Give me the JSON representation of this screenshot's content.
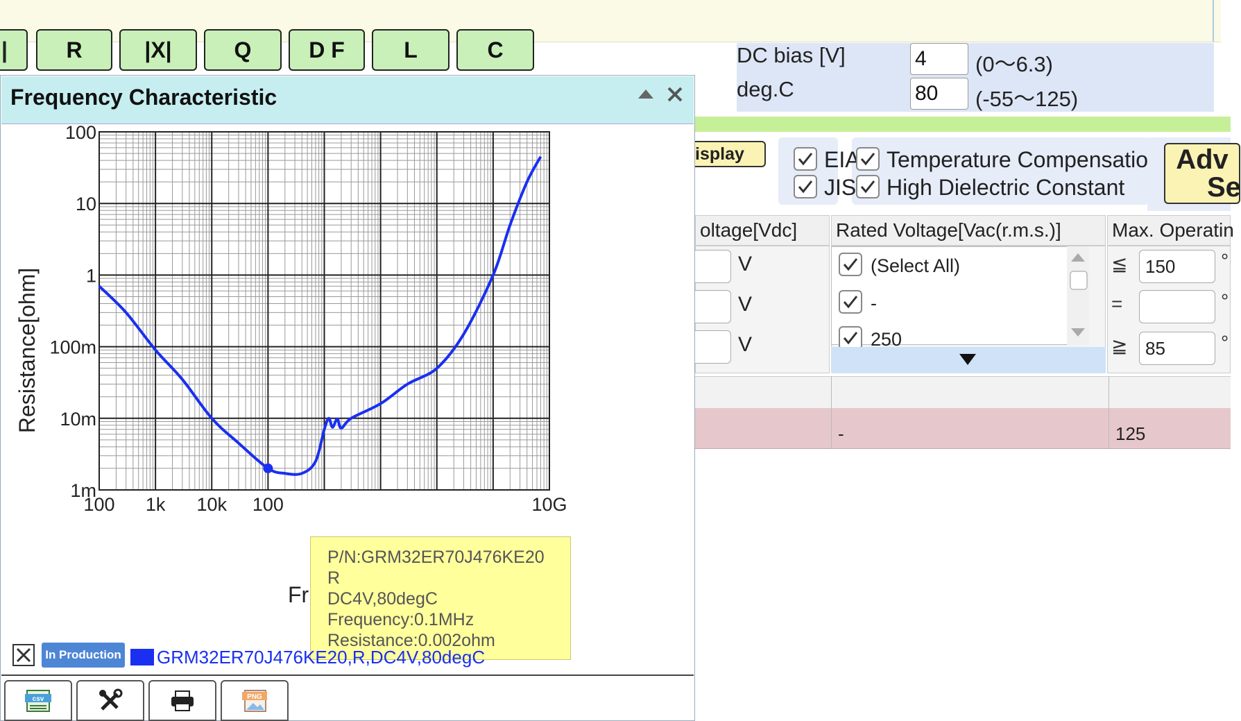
{
  "mode_tabs": [
    "|",
    "R",
    "|X|",
    "Q",
    "D F",
    "L",
    "C"
  ],
  "bias": {
    "dc_label": "DC bias [V]",
    "dc_value": "4",
    "dc_range": "(0～6.3)",
    "temp_label": "deg.C",
    "temp_value": "80",
    "temp_range": "(-55～125)"
  },
  "filters": {
    "display_btn": "isplay",
    "std_eia": "EIA",
    "std_jis": "JIS",
    "cat_temp": "Temperature Compensation",
    "cat_high": "High Dielectric Constant",
    "adv_line1": "Adv",
    "adv_line2": "Se"
  },
  "columns": {
    "voltage_vdc": "oltage[Vdc]",
    "rated_vac": "Rated Voltage[Vac(r.m.s.)]",
    "max_temp": "Max. Operatin",
    "unit_v": "V",
    "rated_items": [
      "(Select All)",
      "-",
      "250"
    ],
    "le": "≦",
    "eq": "=",
    "ge": "≧",
    "max_le_value": "150",
    "max_ge_value": "85",
    "deg": "°"
  },
  "result_row": {
    "rated": "-",
    "max_temp": "125"
  },
  "popup": {
    "title": "Frequency Characteristic",
    "tooltip": [
      "P/N:GRM32ER70J476KE20",
      "R",
      "DC4V,80degC",
      "Frequency:0.1MHz",
      "Resistance:0.002ohm"
    ],
    "legend_badge": "In Production",
    "legend_text": "GRM32ER70J476KE20,R,DC4V,80degC"
  },
  "chart_data": {
    "type": "line",
    "title": "Frequency Characteristic",
    "xlabel": "Fr",
    "ylabel": "Resistance[ohm]",
    "x_scale": "log",
    "y_scale": "log",
    "xlim": [
      100,
      10000000000
    ],
    "ylim": [
      0.001,
      100
    ],
    "x_tick_labels": [
      "100",
      "1k",
      "10k",
      "100",
      "",
      "",
      "",
      "",
      "10G"
    ],
    "y_tick_labels": [
      "1m",
      "10m",
      "100m",
      "1",
      "10",
      "100"
    ],
    "grid": true,
    "series": [
      {
        "name": "GRM32ER70J476KE20,R,DC4V,80degC",
        "color": "#1a2ff0",
        "x": [
          100,
          300,
          1000,
          3000,
          10000,
          30000,
          100000,
          200000,
          400000,
          700000,
          1000000,
          1200000,
          1400000,
          1700000,
          2000000,
          3000000,
          10000000,
          30000000,
          100000000,
          300000000,
          1000000000,
          2000000000,
          4000000000,
          7000000000
        ],
        "y": [
          0.7,
          0.3,
          0.09,
          0.035,
          0.01,
          0.0045,
          0.002,
          0.0017,
          0.0017,
          0.0025,
          0.007,
          0.01,
          0.0075,
          0.0098,
          0.0073,
          0.01,
          0.016,
          0.03,
          0.05,
          0.15,
          1.0,
          5.0,
          20.0,
          45.0
        ]
      }
    ],
    "highlight_point": {
      "x": 100000,
      "y": 0.002
    }
  }
}
